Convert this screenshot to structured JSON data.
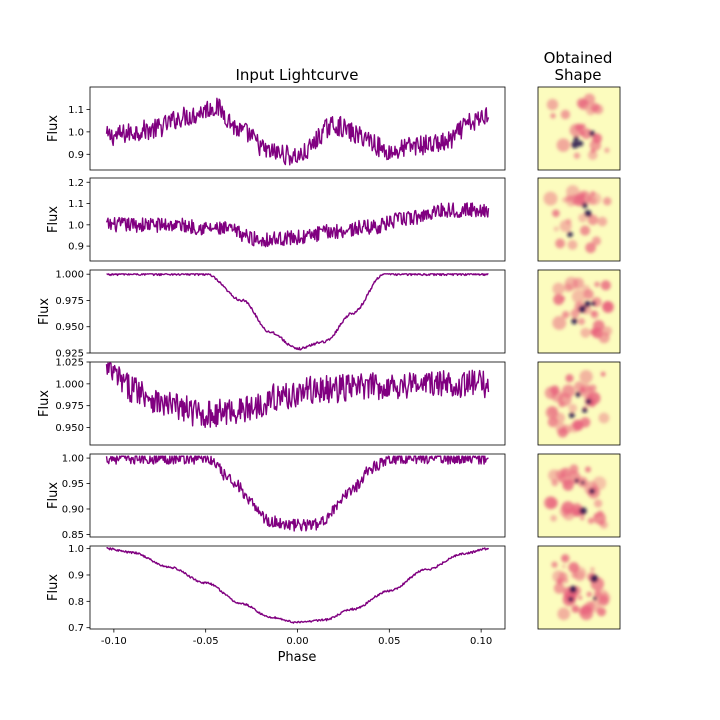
{
  "figure": {
    "left_title": "Input Lightcurve",
    "right_title_line1": "Obtained",
    "right_title_line2": "Shape",
    "xlabel": "Phase",
    "x_ticks": [
      "-0.10",
      "-0.05",
      "0.00",
      "0.05",
      "0.10"
    ]
  },
  "colors": {
    "line": "#800080",
    "shape_low": "#fcfcbe",
    "shape_mid": "#e8627d",
    "shape_high": "#20114b"
  },
  "chart_data": [
    {
      "type": "line",
      "ylabel": "Flux",
      "xlim": [
        -0.113,
        0.113
      ],
      "ylim": [
        0.83,
        1.2
      ],
      "yticks": [
        0.9,
        1.0,
        1.1
      ],
      "ytick_labels": [
        "0.9",
        "1.0",
        "1.1"
      ],
      "noise": 0.045,
      "x": [
        -0.104,
        -0.08,
        -0.06,
        -0.045,
        -0.03,
        -0.015,
        0.0,
        0.02,
        0.035,
        0.05,
        0.065,
        0.08,
        0.095,
        0.104
      ],
      "y": [
        0.98,
        1.01,
        1.07,
        1.11,
        1.0,
        0.91,
        0.89,
        1.03,
        0.98,
        0.91,
        0.94,
        0.95,
        1.04,
        1.08
      ]
    },
    {
      "type": "line",
      "ylabel": "Flux",
      "xlim": [
        -0.113,
        0.113
      ],
      "ylim": [
        0.83,
        1.22
      ],
      "yticks": [
        0.9,
        1.0,
        1.1,
        1.2
      ],
      "ytick_labels": [
        "0.9",
        "1.0",
        "1.1",
        "1.2"
      ],
      "noise": 0.035,
      "x": [
        -0.104,
        -0.07,
        -0.04,
        -0.02,
        0.0,
        0.02,
        0.04,
        0.06,
        0.08,
        0.104
      ],
      "y": [
        1.0,
        1.0,
        0.98,
        0.93,
        0.94,
        0.97,
        0.99,
        1.03,
        1.07,
        1.07
      ]
    },
    {
      "type": "line",
      "ylabel": "Flux",
      "xlim": [
        -0.113,
        0.113
      ],
      "ylim": [
        0.925,
        1.004
      ],
      "yticks": [
        0.925,
        0.95,
        0.975,
        1.0
      ],
      "ytick_labels": [
        "0.925",
        "0.950",
        "0.975",
        "1.000"
      ],
      "noise": 0.0012,
      "x": [
        -0.104,
        -0.05,
        -0.03,
        -0.015,
        0.0,
        0.015,
        0.03,
        0.047,
        0.104
      ],
      "y": [
        1.0,
        1.0,
        0.975,
        0.945,
        0.929,
        0.936,
        0.963,
        1.0,
        1.0
      ]
    },
    {
      "type": "line",
      "ylabel": "Flux",
      "xlim": [
        -0.113,
        0.113
      ],
      "ylim": [
        0.93,
        1.025
      ],
      "yticks": [
        0.95,
        0.975,
        1.0,
        1.025
      ],
      "ytick_labels": [
        "0.950",
        "0.975",
        "1.000",
        "1.025"
      ],
      "noise": 0.016,
      "x": [
        -0.104,
        -0.09,
        -0.07,
        -0.05,
        -0.03,
        -0.01,
        0.01,
        0.04,
        0.07,
        0.104
      ],
      "y": [
        1.015,
        0.995,
        0.975,
        0.965,
        0.97,
        0.985,
        0.993,
        0.997,
        1.0,
        1.0
      ]
    },
    {
      "type": "line",
      "ylabel": "Flux",
      "xlim": [
        -0.113,
        0.113
      ],
      "ylim": [
        0.845,
        1.008
      ],
      "yticks": [
        0.85,
        0.9,
        0.95,
        1.0
      ],
      "ytick_labels": [
        "0.85",
        "0.90",
        "0.95",
        "1.00"
      ],
      "noise": 0.012,
      "x": [
        -0.104,
        -0.05,
        -0.035,
        -0.025,
        -0.015,
        0.0,
        0.012,
        0.02,
        0.03,
        0.04,
        0.05,
        0.104
      ],
      "y": [
        1.0,
        1.0,
        0.955,
        0.91,
        0.875,
        0.868,
        0.87,
        0.9,
        0.94,
        0.98,
        1.0,
        1.0
      ]
    },
    {
      "type": "line",
      "ylabel": "Flux",
      "xlim": [
        -0.113,
        0.113
      ],
      "ylim": [
        0.695,
        1.01
      ],
      "yticks": [
        0.7,
        0.8,
        0.9,
        1.0
      ],
      "ytick_labels": [
        "0.7",
        "0.8",
        "0.9",
        "1.0"
      ],
      "noise": 0.004,
      "x": [
        -0.104,
        -0.09,
        -0.07,
        -0.05,
        -0.03,
        -0.015,
        0.0,
        0.015,
        0.03,
        0.05,
        0.07,
        0.09,
        0.104
      ],
      "y": [
        1.0,
        0.985,
        0.93,
        0.87,
        0.79,
        0.74,
        0.72,
        0.73,
        0.77,
        0.84,
        0.92,
        0.98,
        1.0
      ]
    }
  ]
}
